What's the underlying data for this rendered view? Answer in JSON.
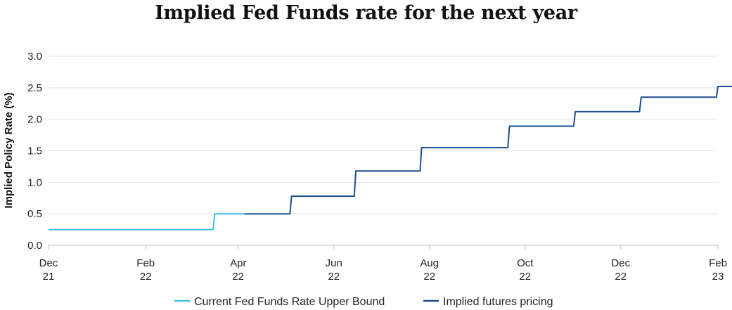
{
  "chart_data": {
    "type": "line",
    "title": "Implied Fed Funds rate for the next year",
    "ylabel": "Implied Policy Rate (%)",
    "xlabel": "",
    "ylim": [
      0,
      3
    ],
    "yticks": [
      "0.0",
      "0.5",
      "1.0",
      "1.5",
      "2.0",
      "2.5",
      "3.0"
    ],
    "x_range": [
      "2021-12-01",
      "2023-02-01"
    ],
    "xticks": [
      {
        "date": "2021-12-01",
        "line1": "Dec",
        "line2": "21"
      },
      {
        "date": "2022-02-01",
        "line1": "Feb",
        "line2": "22"
      },
      {
        "date": "2022-04-01",
        "line1": "Apr",
        "line2": "22"
      },
      {
        "date": "2022-06-01",
        "line1": "Jun",
        "line2": "22"
      },
      {
        "date": "2022-08-01",
        "line1": "Aug",
        "line2": "22"
      },
      {
        "date": "2022-10-01",
        "line1": "Oct",
        "line2": "22"
      },
      {
        "date": "2022-12-01",
        "line1": "Dec",
        "line2": "22"
      },
      {
        "date": "2023-02-01",
        "line1": "Feb",
        "line2": "23"
      }
    ],
    "grid": true,
    "legend_position": "bottom",
    "series": [
      {
        "name": "Current Fed Funds Rate Upper Bound",
        "color": "#3ec1e6",
        "points": [
          [
            "2021-12-01",
            0.25
          ],
          [
            "2022-03-16",
            0.25
          ],
          [
            "2022-03-17",
            0.5
          ],
          [
            "2022-04-05",
            0.5
          ]
        ]
      },
      {
        "name": "Implied futures pricing",
        "color": "#1a4e8c",
        "points": [
          [
            "2022-04-05",
            0.5
          ],
          [
            "2022-05-04",
            0.5
          ],
          [
            "2022-05-05",
            0.78
          ],
          [
            "2022-06-14",
            0.78
          ],
          [
            "2022-06-15",
            1.18
          ],
          [
            "2022-07-26",
            1.18
          ],
          [
            "2022-07-27",
            1.55
          ],
          [
            "2022-09-20",
            1.55
          ],
          [
            "2022-09-21",
            1.89
          ],
          [
            "2022-11-01",
            1.89
          ],
          [
            "2022-11-02",
            2.12
          ],
          [
            "2022-12-13",
            2.12
          ],
          [
            "2022-12-14",
            2.35
          ],
          [
            "2023-01-31",
            2.35
          ],
          [
            "2023-02-01",
            2.52
          ],
          [
            "2023-03-15",
            2.52
          ]
        ]
      }
    ]
  }
}
